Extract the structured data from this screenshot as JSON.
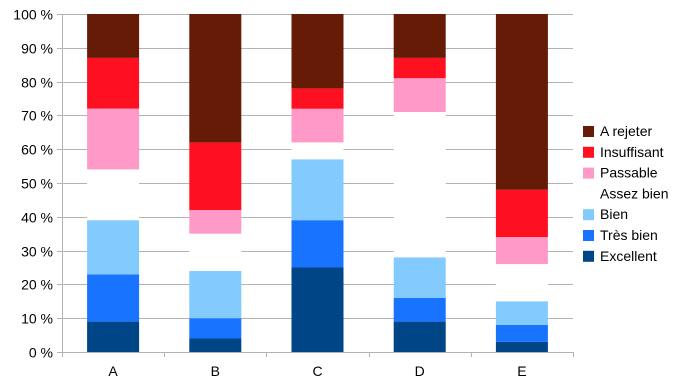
{
  "chart_data": {
    "type": "bar",
    "stacked": true,
    "percent": true,
    "categories": [
      "A",
      "B",
      "C",
      "D",
      "E"
    ],
    "series": [
      {
        "name": "Excellent",
        "color": "#004586",
        "values": [
          9,
          4,
          25,
          9,
          3
        ]
      },
      {
        "name": "Très bien",
        "color": "#1874ff",
        "values": [
          14,
          6,
          14,
          7,
          5
        ]
      },
      {
        "name": "Bien",
        "color": "#83caff",
        "values": [
          16,
          14,
          18,
          12,
          7
        ]
      },
      {
        "name": "Assez bien",
        "color": "#ffffff",
        "values": [
          15,
          11,
          5,
          43,
          11
        ]
      },
      {
        "name": "Passable",
        "color": "#ff9ac8",
        "values": [
          18,
          7,
          10,
          10,
          8
        ]
      },
      {
        "name": "Insuffisant",
        "color": "#ff1020",
        "values": [
          15,
          20,
          6,
          6,
          14
        ]
      },
      {
        "name": "A rejeter",
        "color": "#651b05",
        "values": [
          13,
          38,
          22,
          13,
          52
        ]
      }
    ],
    "yticks": [
      "0 %",
      "10 %",
      "20 %",
      "30 %",
      "40 %",
      "50 %",
      "60 %",
      "70 %",
      "80 %",
      "90 %",
      "100 %"
    ],
    "ylim": [
      0,
      100
    ],
    "grid": true,
    "legend_position": "right"
  }
}
